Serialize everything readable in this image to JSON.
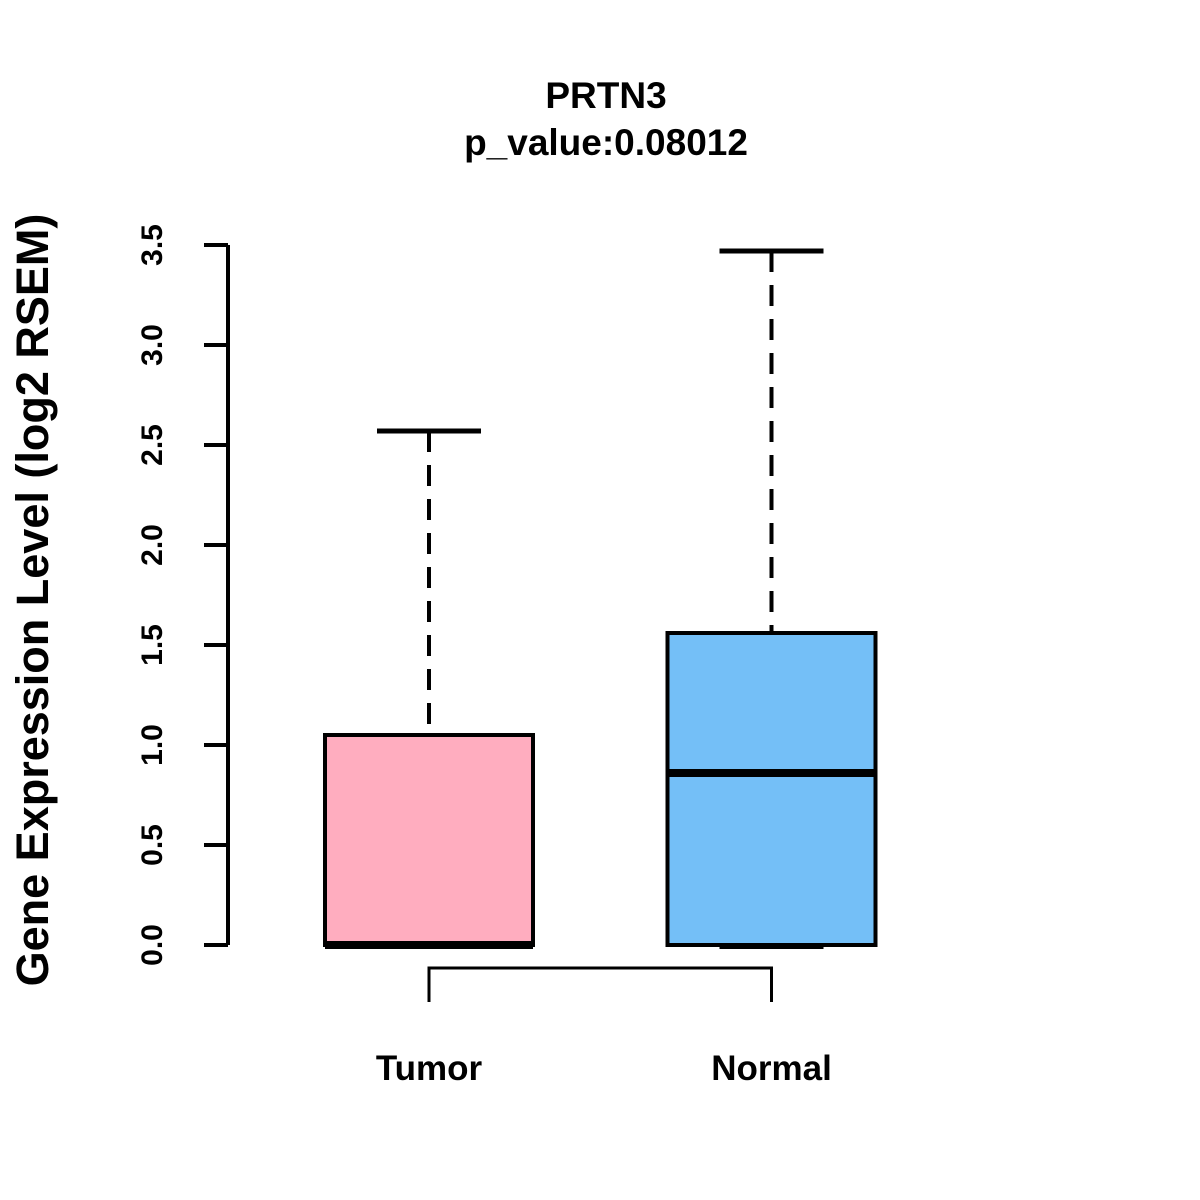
{
  "chart_data": {
    "type": "boxplot",
    "title": "PRTN3",
    "subtitle": "p_value:0.08012",
    "p_value": "0.08012",
    "ylabel": "Gene Expression Level (log2 RSEM)",
    "xlabel": "",
    "ylim": [
      0.0,
      3.5
    ],
    "yticks": [
      0.0,
      0.5,
      1.0,
      1.5,
      2.0,
      2.5,
      3.0,
      3.5
    ],
    "ytick_labels": [
      "0.0",
      "0.5",
      "1.0",
      "1.5",
      "2.0",
      "2.5",
      "3.0",
      "3.5"
    ],
    "grid": false,
    "legend": "none",
    "categories": [
      "Tumor",
      "Normal"
    ],
    "series": [
      {
        "name": "Tumor",
        "fill": "#ffadbf",
        "lower_whisker": 0.0,
        "q1": 0.0,
        "median": 0.0,
        "q3": 1.05,
        "upper_whisker": 2.57
      },
      {
        "name": "Normal",
        "fill": "#74bff7",
        "lower_whisker": 0.0,
        "q1": 0.0,
        "median": 0.86,
        "q3": 1.56,
        "upper_whisker": 3.47
      }
    ],
    "colors": {
      "line": "#000000",
      "text": "#000000",
      "background": "#ffffff",
      "tumor_fill": "#ffadbf",
      "normal_fill": "#74bff7"
    },
    "annotations": {
      "comparison_bracket": "connects Tumor and Normal group centers below axis"
    }
  }
}
